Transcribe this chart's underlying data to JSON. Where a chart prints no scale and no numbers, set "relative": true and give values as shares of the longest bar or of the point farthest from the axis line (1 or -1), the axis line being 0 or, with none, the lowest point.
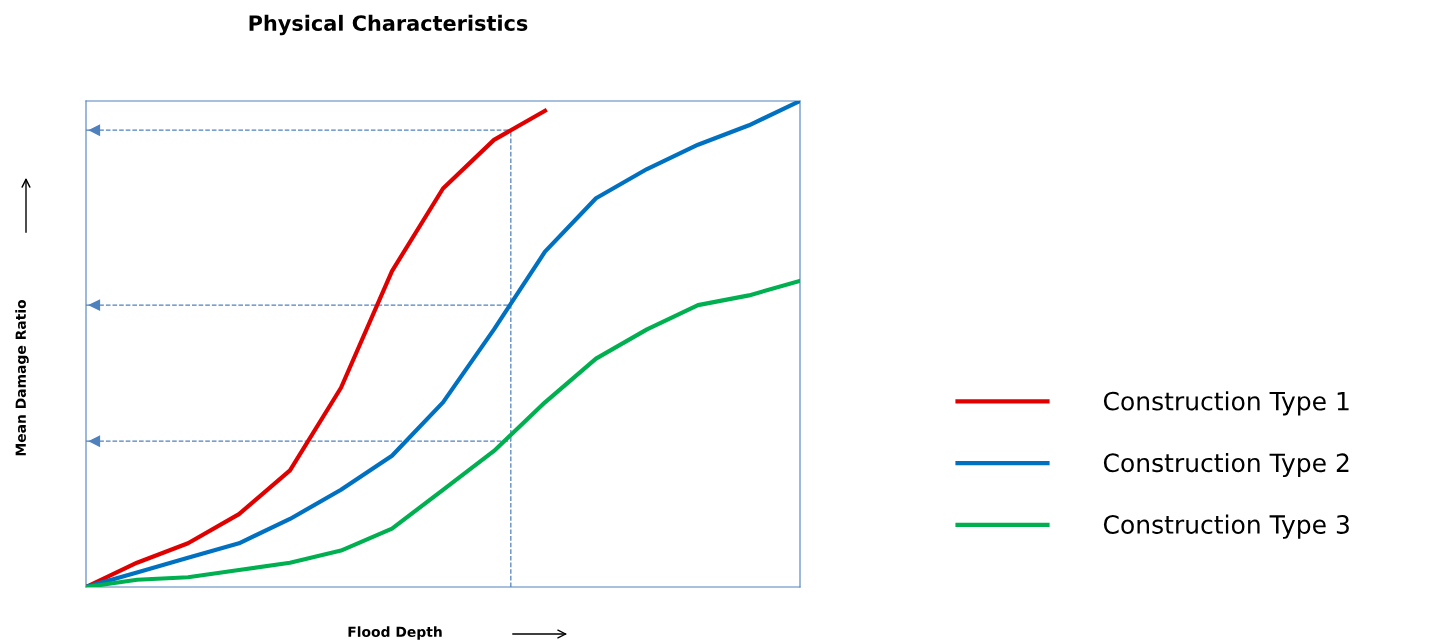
{
  "chart_data": {
    "type": "line",
    "title": "Physical Characteristics",
    "xlabel": "Flood Depth",
    "ylabel": "Mean Damage Ratio",
    "relative": true,
    "categories": [
      null,
      null,
      null,
      null,
      null,
      null,
      null,
      null,
      null,
      null,
      null,
      null,
      null,
      null,
      null
    ],
    "series": [
      {
        "name": "Construction Type 1",
        "color": "#e00000",
        "values": [
          0,
          0.05,
          0.09,
          0.15,
          0.24,
          0.41,
          0.65,
          0.82,
          0.92,
          0.98,
          null,
          null,
          null,
          null,
          null
        ]
      },
      {
        "name": "Construction Type 2",
        "color": "#0070c0",
        "values": [
          0,
          0.03,
          0.06,
          0.09,
          0.14,
          0.2,
          0.27,
          0.38,
          0.53,
          0.69,
          0.8,
          0.86,
          0.91,
          0.95,
          1
        ]
      },
      {
        "name": "Construction Type 3",
        "color": "#00b050",
        "values": [
          0,
          0.015,
          0.02,
          0.035,
          0.05,
          0.075,
          0.12,
          0.2,
          0.28,
          0.38,
          0.47,
          0.53,
          0.58,
          0.6,
          0.63
        ]
      }
    ],
    "ref_lines": [
      {
        "axis": "y",
        "value": 0.94,
        "color": "#4f81bd",
        "line_style": "dashed"
      },
      {
        "axis": "y",
        "value": 0.58,
        "color": "#4f81bd",
        "line_style": "dashed"
      },
      {
        "axis": "y",
        "value": 0.3,
        "color": "#4f81bd",
        "line_style": "dashed"
      }
    ],
    "legend": "right",
    "tick_labels": false,
    "line_style": "solid",
    "marker": "none"
  }
}
